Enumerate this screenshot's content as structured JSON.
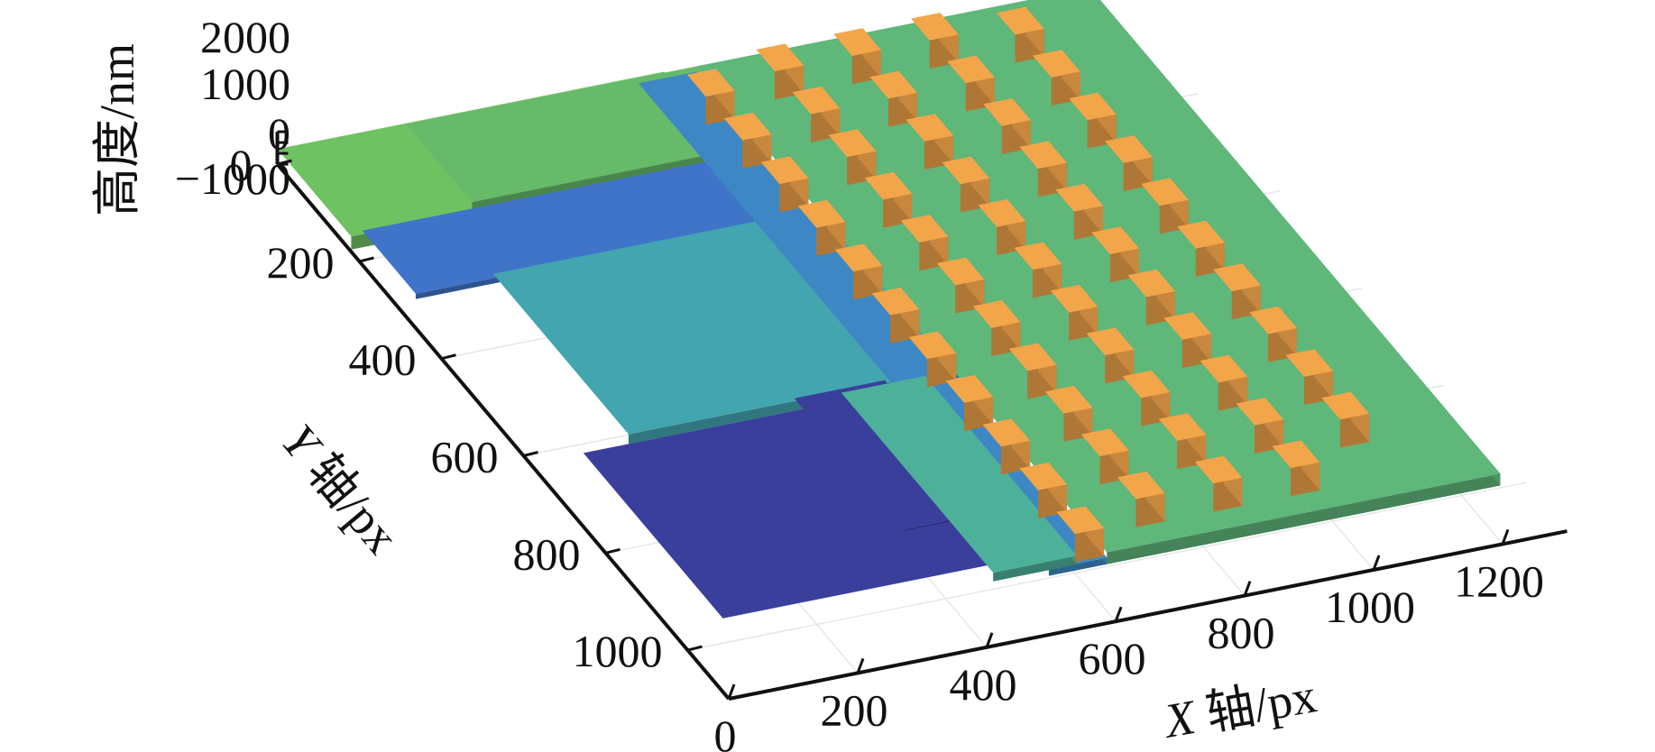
{
  "chart_data": {
    "type": "surface3d",
    "title": "",
    "colormap": "parula",
    "grid": true,
    "x_axis": {
      "label_var": "X",
      "label_rest": " 轴/px",
      "range": [
        0,
        1300
      ],
      "ticks": [
        0,
        200,
        400,
        600,
        800,
        1000,
        1200
      ],
      "tick_labels": [
        "0",
        "200",
        "400",
        "600",
        "800",
        "1000",
        "1200"
      ]
    },
    "y_axis": {
      "label_var": "Y",
      "label_rest": " 轴/px",
      "range": [
        0,
        1100
      ],
      "ticks": [
        0,
        200,
        400,
        600,
        800,
        1000
      ],
      "tick_labels": [
        "0",
        "200",
        "400",
        "600",
        "800",
        "1000"
      ]
    },
    "z_axis": {
      "label": "高度/nm",
      "range": [
        -1000,
        2000
      ],
      "ticks": [
        -1000,
        0,
        1000,
        2000
      ],
      "tick_labels": [
        "−1000",
        "0",
        "1000",
        "2000"
      ]
    },
    "surface_regions": [
      {
        "x": [
          0,
          600
        ],
        "y": [
          0,
          180
        ],
        "z": 400,
        "color": "#6fc262"
      },
      {
        "x": [
          200,
          800
        ],
        "y": [
          0,
          160
        ],
        "z": 300,
        "color": "#67ba6a"
      },
      {
        "x": [
          30,
          600
        ],
        "y": [
          160,
          290
        ],
        "z": -300,
        "color": "#3f74c8"
      },
      {
        "x": [
          150,
          700
        ],
        "y": [
          290,
          620
        ],
        "z": 100,
        "color": "#43a5b0"
      },
      {
        "x": [
          560,
          650
        ],
        "y": [
          0,
          1000
        ],
        "z": -200,
        "color": "#3d88c4"
      },
      {
        "x": [
          650,
          1260
        ],
        "y": [
          0,
          1000
        ],
        "z": 300,
        "color": "#5fb77a"
      },
      {
        "x": [
          80,
          560
        ],
        "y": [
          620,
          960
        ],
        "z": -800,
        "color": "#3a3f9c"
      },
      {
        "x": [
          420,
          560
        ],
        "y": [
          600,
          870
        ],
        "z": -700,
        "color": "#3a3f9c"
      },
      {
        "x": [
          480,
          610
        ],
        "y": [
          620,
          990
        ],
        "z": 0,
        "color": "#4db19a"
      }
    ],
    "pads": {
      "z": 1800,
      "color": "#f3a54a",
      "columns": [
        {
          "x": 610,
          "width": 45,
          "y_start": 40,
          "y_step": 90,
          "count": 11
        },
        {
          "x": 730,
          "width": 45,
          "y_start": 20,
          "y_step": 88,
          "count": 11
        },
        {
          "x": 850,
          "width": 45,
          "y_start": 20,
          "y_step": 88,
          "count": 11
        },
        {
          "x": 970,
          "width": 45,
          "y_start": 20,
          "y_step": 88,
          "count": 11
        },
        {
          "x": 1090,
          "width": 45,
          "y_start": 40,
          "y_step": 88,
          "count": 10
        }
      ]
    }
  }
}
